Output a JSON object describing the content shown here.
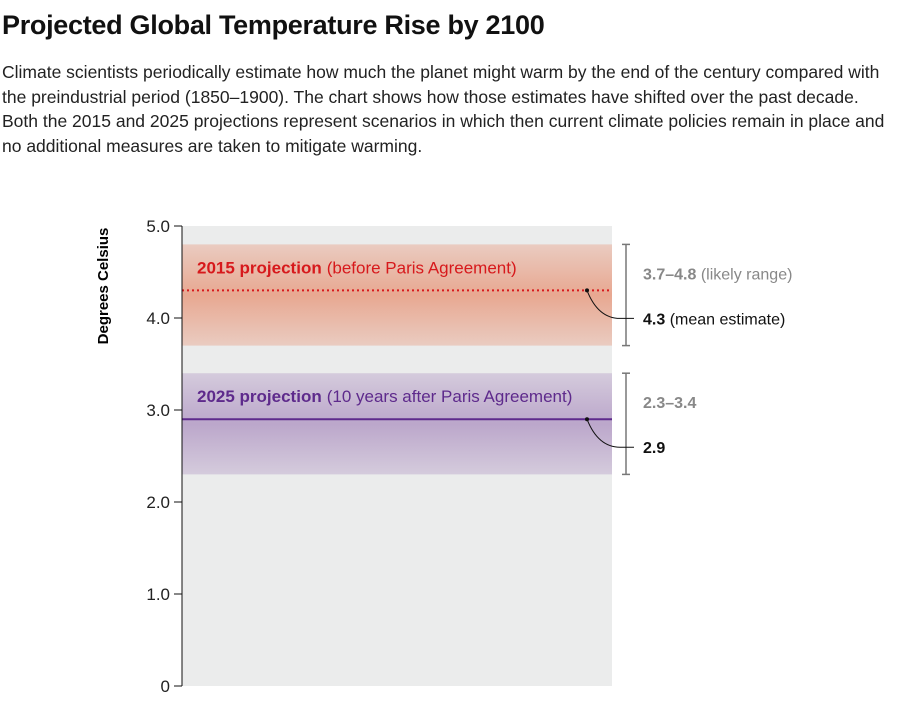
{
  "title": "Projected Global Temperature Rise by 2100",
  "subtitle": "Climate scientists periodically estimate how much the planet might warm by the end of the century compared with the preindustrial period (1850–1900). The chart shows how those estimates have shifted over the past decade. Both the 2015 and 2025 projections represent scenarios in which then current climate policies remain in place and no additional measures are taken to mitigate warming.",
  "chart_data": {
    "type": "range-band",
    "ylabel": "Degrees Celsius",
    "ylim": [
      0,
      5.0
    ],
    "yticks": [
      0,
      1.0,
      2.0,
      3.0,
      4.0,
      5.0
    ],
    "ytick_labels": [
      "0",
      "1.0",
      "2.0",
      "3.0",
      "4.0",
      "5.0"
    ],
    "series": [
      {
        "name": "2015 projection",
        "note": "(before Paris Agreement)",
        "low": 3.7,
        "high": 4.8,
        "mean": 4.3,
        "range_label": "3.7–4.8",
        "range_suffix": " (likely range)",
        "mean_label": "4.3",
        "mean_suffix": " (mean estimate)",
        "color": "#d7191c",
        "band_color": "#e8a48c",
        "line_style": "dotted"
      },
      {
        "name": "2025 projection",
        "note": "(10 years after Paris Agreement)",
        "low": 2.3,
        "high": 3.4,
        "mean": 2.9,
        "range_label": "2.3–3.4",
        "range_suffix": "",
        "mean_label": "2.9",
        "mean_suffix": "",
        "color": "#5e2a8c",
        "band_color": "#b9a3c9",
        "line_style": "solid"
      }
    ],
    "grid": false
  }
}
